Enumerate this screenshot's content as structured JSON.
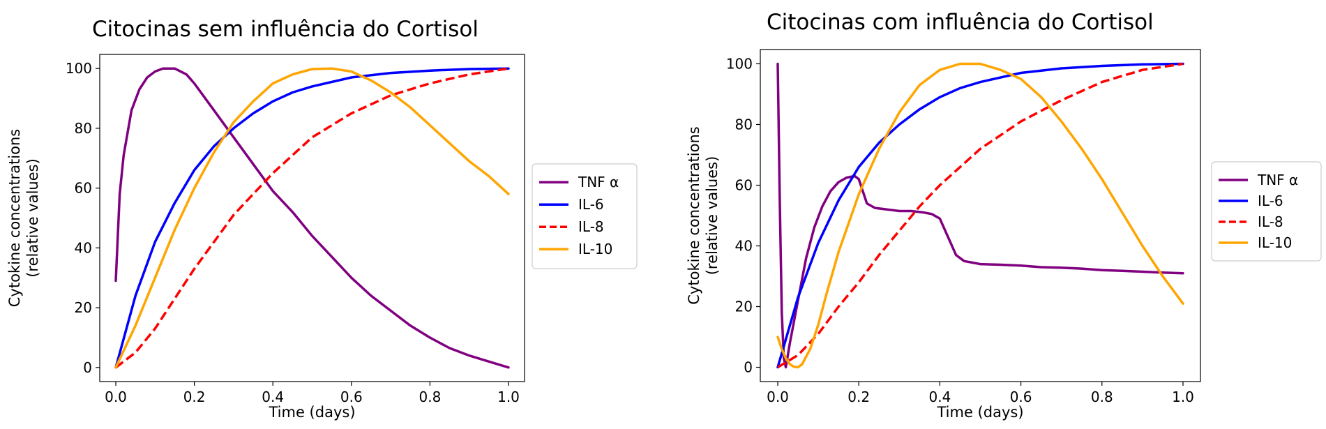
{
  "colors": {
    "tnf": "#800080",
    "il6": "#0000ff",
    "il8": "#ff0000",
    "il10": "#ffa500"
  },
  "chart_data": [
    {
      "type": "line",
      "title": "Citocinas sem influência do Cortisol",
      "xlabel": "Time (days)",
      "ylabel": [
        "Cytokine concentrations",
        "(relative values)"
      ],
      "xlim": [
        0,
        1
      ],
      "ylim": [
        0,
        100
      ],
      "xticks": [
        "0.0",
        "0.2",
        "0.4",
        "0.6",
        "0.8",
        "1.0"
      ],
      "yticks": [
        "0",
        "20",
        "40",
        "60",
        "80",
        "100"
      ],
      "grid": false,
      "legend": "right-outside",
      "series": [
        {
          "name": "TNF α",
          "color": "tnf",
          "dash": false,
          "x": [
            0,
            0.01,
            0.02,
            0.04,
            0.06,
            0.08,
            0.1,
            0.12,
            0.15,
            0.18,
            0.2,
            0.25,
            0.3,
            0.35,
            0.4,
            0.45,
            0.5,
            0.55,
            0.6,
            0.65,
            0.7,
            0.75,
            0.8,
            0.85,
            0.9,
            0.95,
            1.0
          ],
          "y": [
            29,
            58,
            71,
            86,
            93,
            97,
            99,
            100,
            100,
            98,
            95,
            86,
            77,
            68,
            59,
            52,
            44,
            37,
            30,
            24,
            19,
            14,
            10,
            6.5,
            4,
            2,
            0
          ]
        },
        {
          "name": "IL-6",
          "color": "il6",
          "dash": false,
          "x": [
            0,
            0.05,
            0.1,
            0.15,
            0.2,
            0.25,
            0.3,
            0.35,
            0.4,
            0.45,
            0.5,
            0.6,
            0.7,
            0.8,
            0.9,
            1.0
          ],
          "y": [
            0,
            24,
            42,
            55,
            66,
            74,
            80,
            85,
            89,
            92,
            94,
            97,
            98.5,
            99.3,
            99.8,
            100
          ]
        },
        {
          "name": "IL-8",
          "color": "il8",
          "dash": true,
          "x": [
            0,
            0.05,
            0.1,
            0.15,
            0.2,
            0.25,
            0.3,
            0.35,
            0.4,
            0.45,
            0.5,
            0.6,
            0.7,
            0.8,
            0.9,
            1.0
          ],
          "y": [
            0,
            5,
            13,
            23,
            33,
            42,
            51,
            58,
            65,
            71,
            77,
            85,
            91,
            95,
            98,
            100
          ]
        },
        {
          "name": "IL-10",
          "color": "il10",
          "dash": false,
          "x": [
            0,
            0.05,
            0.1,
            0.15,
            0.2,
            0.25,
            0.3,
            0.35,
            0.4,
            0.45,
            0.5,
            0.55,
            0.6,
            0.65,
            0.7,
            0.75,
            0.8,
            0.85,
            0.9,
            0.95,
            1.0
          ],
          "y": [
            0,
            14,
            30,
            46,
            60,
            72,
            82,
            89,
            95,
            98,
            99.8,
            100,
            99,
            96,
            92,
            87,
            81,
            75,
            69,
            64,
            58
          ]
        }
      ]
    },
    {
      "type": "line",
      "title": "Citocinas com influência do Cortisol",
      "xlabel": "Time (days)",
      "ylabel": [
        "Cytokine concentrations",
        "(relative values)"
      ],
      "xlim": [
        0,
        1
      ],
      "ylim": [
        0,
        100
      ],
      "xticks": [
        "0.0",
        "0.2",
        "0.4",
        "0.6",
        "0.8",
        "1.0"
      ],
      "yticks": [
        "0",
        "20",
        "40",
        "60",
        "80",
        "100"
      ],
      "grid": false,
      "legend": "right-outside",
      "series": [
        {
          "name": "TNF α",
          "color": "tnf",
          "dash": false,
          "x": [
            0,
            0.005,
            0.01,
            0.015,
            0.02,
            0.03,
            0.05,
            0.07,
            0.09,
            0.11,
            0.13,
            0.15,
            0.17,
            0.19,
            0.2,
            0.21,
            0.22,
            0.24,
            0.27,
            0.3,
            0.33,
            0.36,
            0.38,
            0.4,
            0.42,
            0.44,
            0.46,
            0.5,
            0.55,
            0.6,
            0.65,
            0.7,
            0.75,
            0.8,
            0.85,
            0.9,
            0.95,
            1.0
          ],
          "y": [
            100,
            55,
            18,
            3,
            0,
            8,
            22,
            36,
            46,
            53,
            58,
            61,
            62.5,
            63,
            62,
            58,
            54,
            52.5,
            52,
            51.5,
            51.5,
            51,
            50.5,
            49,
            43,
            37,
            35,
            34,
            33.8,
            33.5,
            33,
            32.8,
            32.5,
            32,
            31.8,
            31.5,
            31.2,
            31
          ]
        },
        {
          "name": "IL-6",
          "color": "il6",
          "dash": false,
          "x": [
            0,
            0.05,
            0.1,
            0.15,
            0.2,
            0.25,
            0.3,
            0.35,
            0.4,
            0.45,
            0.5,
            0.6,
            0.7,
            0.8,
            0.9,
            1.0
          ],
          "y": [
            0,
            23,
            41,
            55,
            66,
            74,
            80,
            85,
            89,
            92,
            94,
            97,
            98.5,
            99.3,
            99.8,
            100
          ]
        },
        {
          "name": "IL-8",
          "color": "il8",
          "dash": true,
          "x": [
            0,
            0.05,
            0.1,
            0.15,
            0.2,
            0.25,
            0.3,
            0.35,
            0.4,
            0.45,
            0.5,
            0.6,
            0.7,
            0.8,
            0.9,
            1.0
          ],
          "y": [
            0,
            4,
            11,
            20,
            28,
            37,
            45,
            53,
            60,
            66,
            72,
            81,
            88,
            94,
            98,
            100
          ]
        },
        {
          "name": "IL-10",
          "color": "il10",
          "dash": false,
          "x": [
            0,
            0.01,
            0.02,
            0.03,
            0.04,
            0.05,
            0.06,
            0.08,
            0.1,
            0.12,
            0.15,
            0.2,
            0.25,
            0.3,
            0.35,
            0.4,
            0.45,
            0.5,
            0.55,
            0.6,
            0.65,
            0.7,
            0.75,
            0.8,
            0.85,
            0.9,
            0.95,
            1.0
          ],
          "y": [
            10,
            6,
            3,
            1,
            0.2,
            0,
            1,
            6,
            14,
            24,
            38,
            57,
            72,
            84,
            93,
            98,
            100,
            100,
            98,
            95,
            89,
            81,
            72,
            62,
            51,
            40,
            30,
            21
          ]
        }
      ]
    }
  ]
}
